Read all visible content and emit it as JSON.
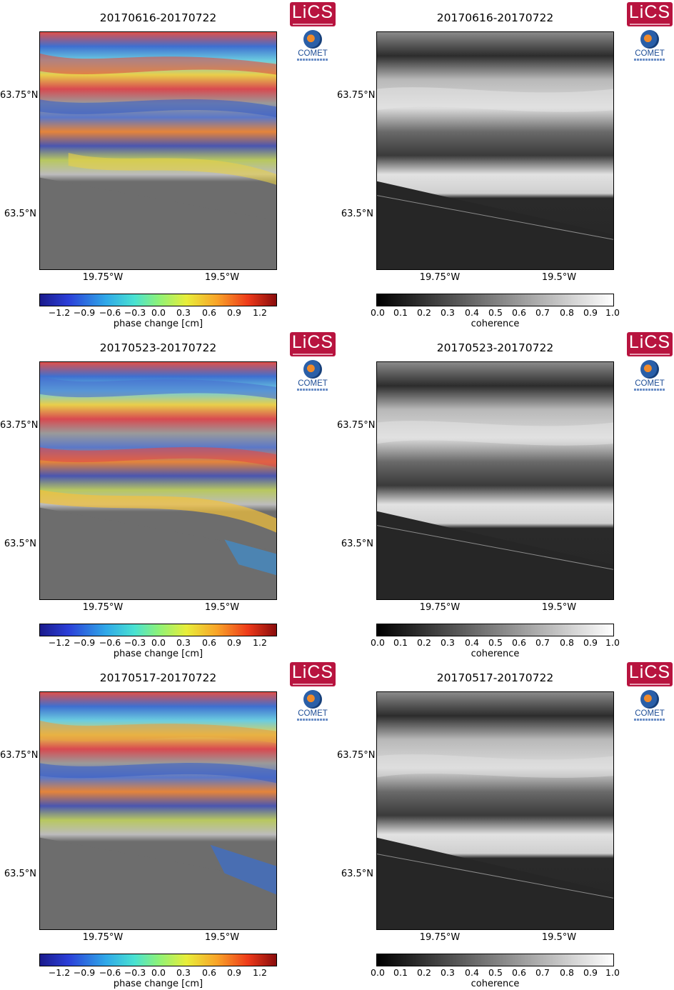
{
  "colorbars": {
    "phase": {
      "label": "phase change [cm]",
      "ticks": [
        "−1.2",
        "−0.9",
        "−0.6",
        "−0.3",
        "0.0",
        "0.3",
        "0.6",
        "0.9",
        "1.2"
      ]
    },
    "coherence": {
      "label": "coherence",
      "ticks": [
        "0.0",
        "0.1",
        "0.2",
        "0.3",
        "0.4",
        "0.5",
        "0.6",
        "0.7",
        "0.8",
        "0.9",
        "1.0"
      ]
    }
  },
  "axes": {
    "lat_upper": "63.75°N",
    "lat_lower": "63.5°N",
    "lon_left": "19.75°W",
    "lon_right": "19.5°W"
  },
  "logos": {
    "lics": "LiCS",
    "comet": "COMET"
  },
  "rows": [
    {
      "pair": "20170616-20170722"
    },
    {
      "pair": "20170523-20170722"
    },
    {
      "pair": "20170517-20170722"
    }
  ]
}
